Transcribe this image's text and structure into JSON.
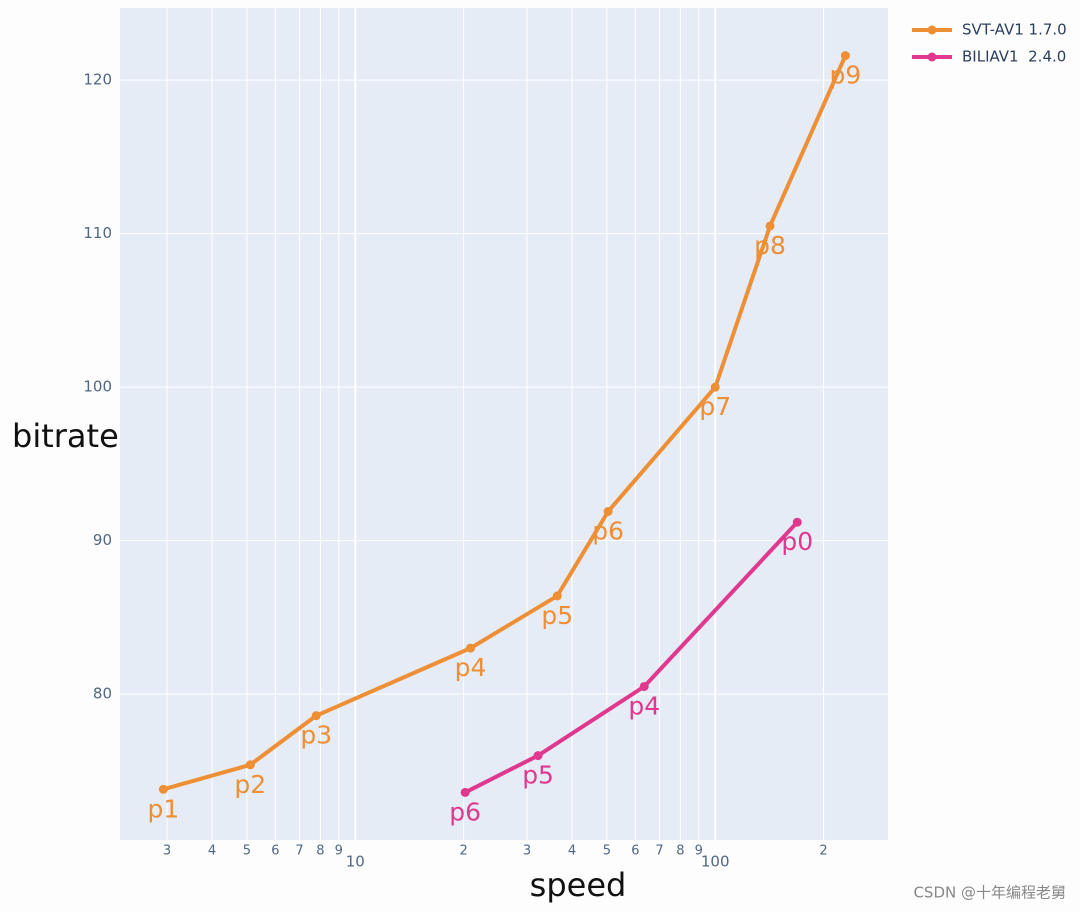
{
  "chart_data": {
    "type": "line",
    "x_label": "speed",
    "y_label": "bitrate",
    "xscale": "log",
    "grid": true,
    "legend": "top-right",
    "watermark": "CSDN @十年编程老舅",
    "xlim": [
      2.22,
      302
    ],
    "ylim": [
      70.5,
      124.7
    ],
    "xticks": [
      3,
      4,
      5,
      6,
      7,
      8,
      9,
      10,
      {
        "value": 20,
        "label": "2"
      },
      {
        "value": 30,
        "label": "3"
      },
      {
        "value": 40,
        "label": "4"
      },
      {
        "value": 50,
        "label": "5"
      },
      {
        "value": 60,
        "label": "6"
      },
      {
        "value": 70,
        "label": "7"
      },
      {
        "value": 80,
        "label": "8"
      },
      {
        "value": 90,
        "label": "9"
      },
      100,
      {
        "value": 200,
        "label": "2"
      }
    ],
    "yticks": [
      80,
      90,
      100,
      110,
      120
    ],
    "series": [
      {
        "name": "SVT-AV1 1.7.0",
        "color": "#ee8f35",
        "x": [
          2.93,
          5.11,
          7.79,
          20.9,
          36.4,
          50.4,
          100,
          142,
          230
        ],
        "values": [
          73.8,
          75.4,
          78.6,
          83.0,
          86.4,
          91.9,
          100.0,
          110.5,
          121.6
        ],
        "labels": [
          "p1",
          "p2",
          "p3",
          "p4",
          "p5",
          "p6",
          "p7",
          "p8",
          "p9"
        ]
      },
      {
        "name": "BILIAV1  2.4.0",
        "color": "#e0388e",
        "x": [
          20.2,
          32.2,
          63.5,
          169
        ],
        "values": [
          73.6,
          76.0,
          80.5,
          91.2
        ],
        "labels": [
          "p6",
          "p5",
          "p4",
          "p0"
        ]
      }
    ]
  }
}
